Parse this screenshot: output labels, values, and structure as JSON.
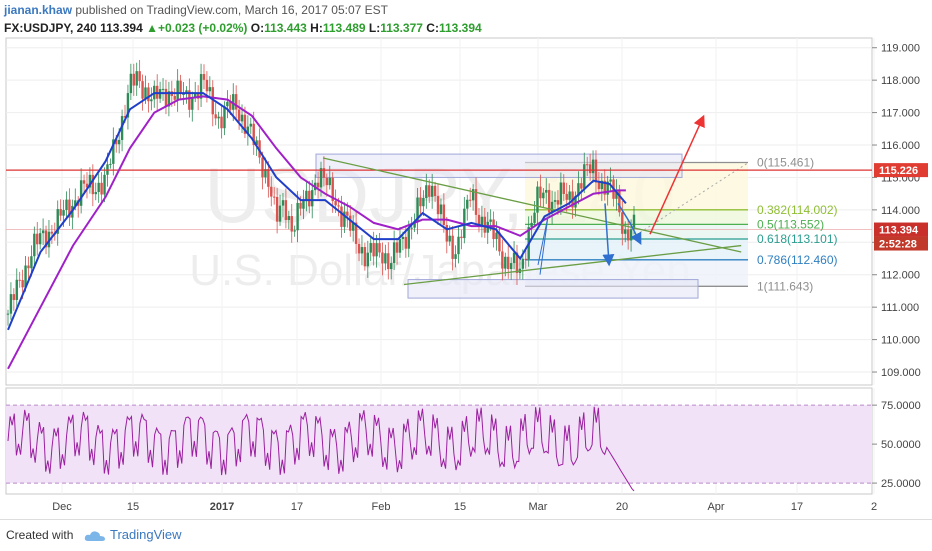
{
  "header": {
    "user": "jianan.khaw",
    "published": " published on TradingView.com, March 16, 2017 05:07 EST",
    "symbol": "FX:USDJPY, 240",
    "last": "113.394",
    "change": "+0.023 (+0.02%)",
    "o_label": "O:",
    "o": "113.443",
    "h_label": "H:",
    "h": "113.489",
    "l_label": "L:",
    "l": "113.377",
    "c_label": "C:",
    "c": "113.394"
  },
  "watermark": {
    "symbol": "USDJPY, 240",
    "name": "U.S. Dollar/Japanese Yen"
  },
  "footer": {
    "created_with": "Created with",
    "brand": "TradingView"
  },
  "colors": {
    "candle_up": "#2e8b57",
    "candle_down": "#d9534f",
    "ma_fast": "#1f3fc9",
    "ma_slow": "#a020c8",
    "rsi_line": "#9b1fa0",
    "rsi_band": "#f1e2f7",
    "fib_0": "#8f8f8f",
    "fib_382": "#8fbe34",
    "fib_5": "#4caf50",
    "fib_618": "#2a9d8f",
    "fib_786": "#2f7fc0",
    "fib_1": "#8f8f8f",
    "resistance": "#d33",
    "trendline": "#6a9e45"
  },
  "chart_data": [
    {
      "type": "candlestick",
      "symbol": "FX:USDJPY",
      "interval": "240",
      "x_ticks": [
        "Dec",
        "15",
        "2017",
        "17",
        "Feb",
        "15",
        "Mar",
        "20",
        "Apr",
        "17",
        "2"
      ],
      "y_ticks": [
        "119.000",
        "118.000",
        "117.000",
        "116.000",
        "115.000",
        "114.000",
        "113.000",
        "112.000",
        "111.000",
        "110.000",
        "109.000"
      ],
      "ylim": [
        108.6,
        119.3
      ],
      "price_labels": [
        {
          "value": 115.226,
          "text": "115.226"
        },
        {
          "value": 113.394,
          "text": "113.394"
        },
        {
          "value": 113.394,
          "text": "2:52:28"
        }
      ],
      "close_path": [
        [
          0,
          110.8
        ],
        [
          3,
          112.8
        ],
        [
          6,
          113.6
        ],
        [
          9,
          114.6
        ],
        [
          12,
          114.9
        ],
        [
          14,
          116.8
        ],
        [
          15,
          117.8
        ],
        [
          16,
          118.0
        ],
        [
          18,
          117.4
        ],
        [
          20,
          117.7
        ],
        [
          22,
          117.4
        ],
        [
          24,
          117.9
        ],
        [
          26,
          116.8
        ],
        [
          28,
          117.3
        ],
        [
          30,
          116.2
        ],
        [
          32,
          115.0
        ],
        [
          33,
          113.6
        ],
        [
          34,
          114.3
        ],
        [
          35,
          113.4
        ],
        [
          36,
          114.0
        ],
        [
          38,
          115.0
        ],
        [
          40,
          114.6
        ],
        [
          41,
          113.8
        ],
        [
          43,
          113.1
        ],
        [
          44,
          112.5
        ],
        [
          46,
          112.8
        ],
        [
          47,
          112.3
        ],
        [
          49,
          113.3
        ],
        [
          51,
          114.2
        ],
        [
          52,
          115.0
        ],
        [
          54,
          113.0
        ],
        [
          55,
          112.8
        ],
        [
          56,
          113.6
        ],
        [
          57,
          114.5
        ],
        [
          58,
          113.8
        ],
        [
          60,
          113.1
        ],
        [
          61,
          112.5
        ],
        [
          62,
          112.3
        ],
        [
          63,
          112.0
        ],
        [
          64,
          113.4
        ],
        [
          65,
          114.2
        ],
        [
          66,
          114.5
        ],
        [
          67,
          114.3
        ],
        [
          68,
          114.4
        ],
        [
          69,
          114.3
        ],
        [
          70,
          114.7
        ],
        [
          71,
          115.1
        ],
        [
          72,
          115.3
        ],
        [
          73,
          114.8
        ],
        [
          74,
          114.6
        ],
        [
          75,
          114.3
        ],
        [
          76,
          113.2
        ],
        [
          77,
          113.394
        ]
      ],
      "ma_fast": {
        "name": "",
        "points": [
          [
            0,
            110.3
          ],
          [
            4,
            112.7
          ],
          [
            8,
            114.0
          ],
          [
            12,
            115.5
          ],
          [
            15,
            117.1
          ],
          [
            18,
            117.6
          ],
          [
            21,
            117.6
          ],
          [
            24,
            117.6
          ],
          [
            27,
            117.1
          ],
          [
            30,
            116.2
          ],
          [
            33,
            115.0
          ],
          [
            36,
            114.3
          ],
          [
            39,
            114.3
          ],
          [
            42,
            113.7
          ],
          [
            45,
            113.1
          ],
          [
            48,
            113.1
          ],
          [
            51,
            113.9
          ],
          [
            54,
            113.4
          ],
          [
            57,
            113.6
          ],
          [
            60,
            113.4
          ],
          [
            63,
            112.5
          ],
          [
            66,
            113.8
          ],
          [
            69,
            114.2
          ],
          [
            72,
            114.9
          ],
          [
            74,
            114.8
          ],
          [
            76,
            114.2
          ]
        ]
      },
      "ma_slow": {
        "name": "",
        "points": [
          [
            0,
            109.1
          ],
          [
            4,
            111.0
          ],
          [
            8,
            112.9
          ],
          [
            12,
            114.4
          ],
          [
            15,
            115.9
          ],
          [
            18,
            117.0
          ],
          [
            21,
            117.4
          ],
          [
            24,
            117.5
          ],
          [
            27,
            117.4
          ],
          [
            30,
            116.9
          ],
          [
            33,
            115.9
          ],
          [
            36,
            115.0
          ],
          [
            39,
            114.5
          ],
          [
            42,
            114.1
          ],
          [
            45,
            113.6
          ],
          [
            48,
            113.4
          ],
          [
            51,
            113.7
          ],
          [
            54,
            113.7
          ],
          [
            57,
            113.5
          ],
          [
            60,
            113.5
          ],
          [
            63,
            113.2
          ],
          [
            66,
            113.7
          ],
          [
            69,
            114.1
          ],
          [
            72,
            114.5
          ],
          [
            75,
            114.6
          ],
          [
            76,
            114.6
          ]
        ]
      },
      "fibonacci": [
        {
          "level": "0",
          "value": 115.461,
          "label": "0(115.461)"
        },
        {
          "level": "0.382",
          "value": 114.002,
          "label": "0.382(114.002)"
        },
        {
          "level": "0.5",
          "value": 113.552,
          "label": "0.5(113.552)"
        },
        {
          "level": "0.618",
          "value": 113.101,
          "label": "0.618(113.101)"
        },
        {
          "level": "0.786",
          "value": 112.46,
          "label": "0.786(112.460)"
        },
        {
          "level": "1",
          "value": 111.643,
          "label": "1(111.643)"
        }
      ],
      "resistance": 115.226,
      "trendlines": [
        {
          "from": [
            30,
            115.6
          ],
          "to": [
            72,
            112.7
          ]
        },
        {
          "from": [
            40,
            111.7
          ],
          "to": [
            72,
            112.9
          ]
        }
      ],
      "arrows": [
        {
          "color": "red",
          "from": [
            68,
            113.2
          ],
          "to": [
            76,
            116.9
          ]
        },
        {
          "color": "blue",
          "from": [
            63,
            114.0
          ],
          "to": [
            63.5,
            112.2
          ]
        },
        {
          "color": "blue",
          "from": [
            66,
            113.6
          ],
          "to": [
            68,
            113.0
          ]
        }
      ]
    },
    {
      "type": "line",
      "name": "",
      "y_ticks": [
        "75.0000",
        "50.0000",
        "25.0000"
      ],
      "ylim": [
        18,
        86
      ],
      "band": [
        25,
        75
      ]
    }
  ]
}
